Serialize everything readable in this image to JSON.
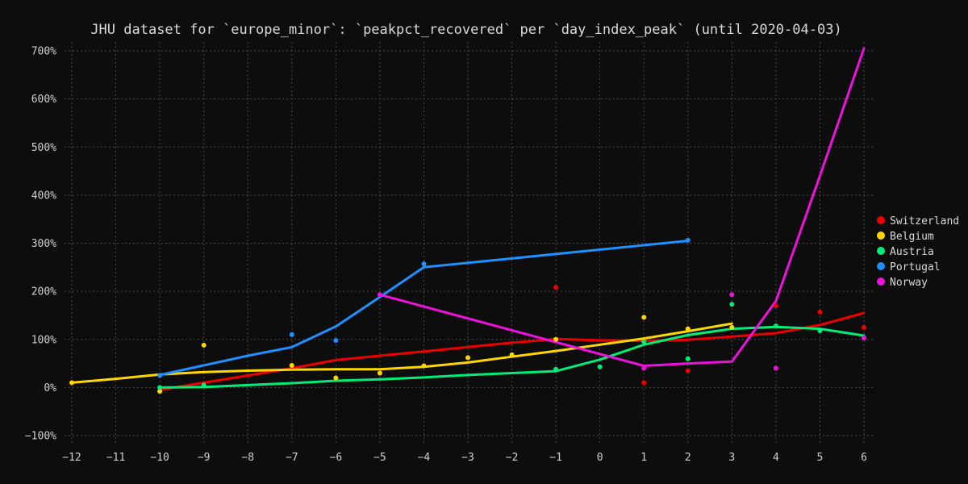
{
  "chart_data": {
    "type": "line",
    "title": "JHU dataset for `europe_minor`: `peakpct_recovered` per `day_index_peak` (until 2020-04-03)",
    "xlabel": "",
    "ylabel": "",
    "xlim": [
      -12,
      6
    ],
    "ylim": [
      -100,
      700
    ],
    "x_ticks": [
      -12,
      -11,
      -10,
      -9,
      -8,
      -7,
      -6,
      -5,
      -4,
      -3,
      -2,
      -1,
      0,
      1,
      2,
      3,
      4,
      5,
      6
    ],
    "y_ticks": [
      -100,
      0,
      100,
      200,
      300,
      400,
      500,
      600,
      700
    ],
    "y_tick_labels": [
      "−100%",
      "0%",
      "100%",
      "200%",
      "300%",
      "400%",
      "500%",
      "600%",
      "700%"
    ],
    "grid": true,
    "legend_position": "right",
    "series": [
      {
        "name": "Switzerland",
        "color": "#ee0000",
        "points": [
          [
            -10,
            -8
          ],
          [
            1,
            10
          ],
          [
            -1,
            208
          ],
          [
            2,
            35
          ],
          [
            4,
            170
          ],
          [
            5,
            157
          ],
          [
            6,
            125
          ]
        ],
        "line": [
          [
            -10,
            -5
          ],
          [
            -9,
            10
          ],
          [
            -8,
            25
          ],
          [
            -7,
            40
          ],
          [
            -6,
            57
          ],
          [
            -5,
            66
          ],
          [
            -4,
            75
          ],
          [
            -3,
            84
          ],
          [
            -2,
            93
          ],
          [
            -1,
            101
          ],
          [
            0,
            98
          ],
          [
            1,
            97
          ],
          [
            2,
            99
          ],
          [
            3,
            106
          ],
          [
            4,
            113
          ],
          [
            5,
            130
          ],
          [
            6,
            155
          ]
        ]
      },
      {
        "name": "Belgium",
        "color": "#ffd700",
        "points": [
          [
            -12,
            10
          ],
          [
            -10,
            -8
          ],
          [
            -9,
            88
          ],
          [
            -7,
            46
          ],
          [
            -6,
            20
          ],
          [
            -5,
            30
          ],
          [
            -4,
            45
          ],
          [
            -3,
            62
          ],
          [
            -2,
            68
          ],
          [
            -1,
            100
          ],
          [
            1,
            146
          ],
          [
            2,
            122
          ],
          [
            3,
            125
          ]
        ],
        "line": [
          [
            -12,
            10
          ],
          [
            -11,
            18
          ],
          [
            -10,
            27
          ],
          [
            -9,
            32
          ],
          [
            -8,
            35
          ],
          [
            -7,
            37
          ],
          [
            -6,
            38
          ],
          [
            -5,
            38
          ],
          [
            -4,
            43
          ],
          [
            -3,
            52
          ],
          [
            -2,
            64
          ],
          [
            -1,
            76
          ],
          [
            0,
            89
          ],
          [
            1,
            102
          ],
          [
            2,
            117
          ],
          [
            3,
            133
          ]
        ]
      },
      {
        "name": "Austria",
        "color": "#00ee77",
        "points": [
          [
            -10,
            0
          ],
          [
            -9,
            5
          ],
          [
            -1,
            38
          ],
          [
            0,
            43
          ],
          [
            1,
            95
          ],
          [
            2,
            60
          ],
          [
            3,
            173
          ],
          [
            4,
            128
          ],
          [
            5,
            118
          ],
          [
            6,
            103
          ]
        ],
        "line": [
          [
            -10,
            0
          ],
          [
            -9,
            1
          ],
          [
            -8,
            5
          ],
          [
            -7,
            9
          ],
          [
            -6,
            14
          ],
          [
            -5,
            17
          ],
          [
            -4,
            21
          ],
          [
            -3,
            26
          ],
          [
            -2,
            30
          ],
          [
            -1,
            34
          ],
          [
            0,
            58
          ],
          [
            1,
            89
          ],
          [
            2,
            109
          ],
          [
            3,
            122
          ],
          [
            4,
            126
          ],
          [
            5,
            122
          ],
          [
            6,
            108
          ]
        ]
      },
      {
        "name": "Portugal",
        "color": "#1e90ff",
        "points": [
          [
            -10,
            25
          ],
          [
            -7,
            110
          ],
          [
            -6,
            98
          ],
          [
            -4,
            257
          ],
          [
            2,
            306
          ]
        ],
        "line": [
          [
            -10,
            26
          ],
          [
            -9,
            46
          ],
          [
            -8,
            66
          ],
          [
            -7,
            84
          ],
          [
            -6,
            127
          ],
          [
            -5,
            188
          ],
          [
            -4,
            250
          ],
          [
            2,
            305
          ]
        ]
      },
      {
        "name": "Norway",
        "color": "#ee11dd",
        "points": [
          [
            -5,
            193
          ],
          [
            1,
            40
          ],
          [
            3,
            193
          ],
          [
            4,
            40
          ],
          [
            6,
            103
          ]
        ],
        "line": [
          [
            -5,
            193
          ],
          [
            1,
            45
          ],
          [
            2,
            50
          ],
          [
            3,
            54
          ],
          [
            4,
            180
          ],
          [
            5,
            440
          ],
          [
            6,
            705
          ]
        ]
      }
    ]
  }
}
